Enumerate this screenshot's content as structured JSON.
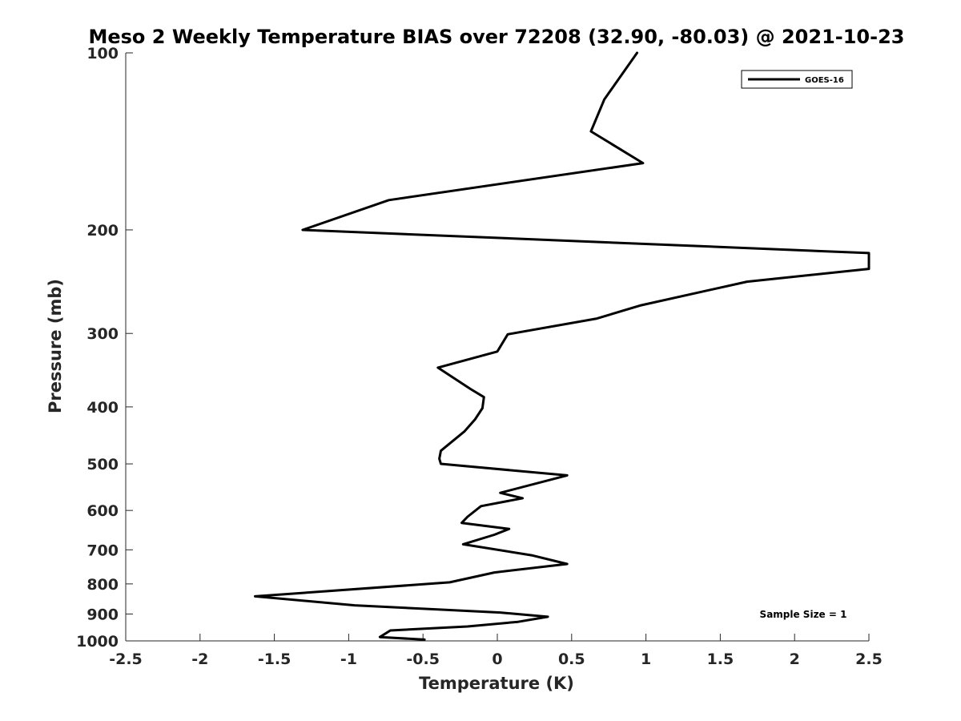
{
  "chart_data": {
    "type": "line",
    "title": "Meso 2 Weekly Temperature BIAS over 72208 (32.90, -80.03) @ 2021-10-23",
    "xlabel": "Temperature (K)",
    "ylabel": "Pressure (mb)",
    "xlim": [
      -2.5,
      2.5
    ],
    "ylim": [
      100,
      1000
    ],
    "y_scale": "log",
    "y_reversed": true,
    "x_ticks": [
      "-2.5",
      "-2",
      "-1.5",
      "-1",
      "-0.5",
      "0",
      "0.5",
      "1",
      "1.5",
      "2",
      "2.5"
    ],
    "y_ticks": [
      "100",
      "200",
      "300",
      "400",
      "500",
      "600",
      "700",
      "800",
      "900",
      "1000"
    ],
    "grid": false,
    "legend_position": "top-right",
    "series": [
      {
        "name": "GOES-16",
        "color": "#000000",
        "x": [
          0.94,
          0.72,
          0.63,
          0.98,
          -0.73,
          -1.31,
          2.5,
          2.5,
          1.68,
          0.96,
          0.67,
          0.07,
          0.0,
          -0.4,
          -0.18,
          -0.09,
          -0.1,
          -0.15,
          -0.22,
          -0.38,
          -0.39,
          -0.38,
          0.47,
          0.02,
          0.17,
          -0.11,
          -0.2,
          -0.24,
          0.08,
          -0.02,
          -0.23,
          0.23,
          0.47,
          -0.02,
          -0.32,
          -1.63,
          -0.96,
          0.02,
          0.34,
          0.14,
          -0.2,
          -0.72,
          -0.79,
          -0.49
        ],
        "y": [
          100,
          120,
          136,
          154,
          178,
          200,
          219,
          233,
          245,
          269,
          283,
          301,
          322,
          343,
          373,
          385,
          402,
          420,
          440,
          475,
          490,
          500,
          523,
          560,
          572,
          590,
          615,
          630,
          645,
          660,
          685,
          715,
          740,
          765,
          795,
          840,
          870,
          895,
          910,
          928,
          945,
          960,
          985,
          995
        ]
      }
    ],
    "legend_entries": [
      "GOES-16"
    ],
    "annotation": "Sample Size = 1"
  }
}
